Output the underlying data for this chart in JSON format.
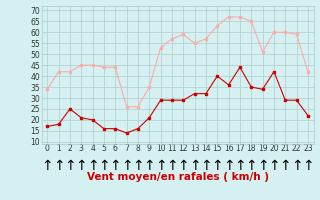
{
  "x": [
    0,
    1,
    2,
    3,
    4,
    5,
    6,
    7,
    8,
    9,
    10,
    11,
    12,
    13,
    14,
    15,
    16,
    17,
    18,
    19,
    20,
    21,
    22,
    23
  ],
  "vent_moyen": [
    17,
    18,
    25,
    21,
    20,
    16,
    16,
    14,
    16,
    21,
    29,
    29,
    29,
    32,
    32,
    40,
    36,
    44,
    35,
    34,
    42,
    29,
    29,
    22
  ],
  "rafales": [
    34,
    42,
    42,
    45,
    45,
    44,
    44,
    26,
    26,
    35,
    53,
    57,
    59,
    55,
    57,
    63,
    67,
    67,
    65,
    51,
    60,
    60,
    59,
    42
  ],
  "line_color_moyen": "#cc0000",
  "line_color_rafales": "#ffaaaa",
  "bg_color": "#d4f0f0",
  "grid_color": "#b0cccc",
  "xlabel": "Vent moyen/en rafales ( km/h )",
  "xlabel_color": "#cc0000",
  "yticks": [
    10,
    15,
    20,
    25,
    30,
    35,
    40,
    45,
    50,
    55,
    60,
    65,
    70
  ],
  "ylim": [
    9,
    72
  ],
  "xlim": [
    -0.5,
    23.5
  ],
  "tick_fontsize": 5.5,
  "xlabel_fontsize": 7.5
}
